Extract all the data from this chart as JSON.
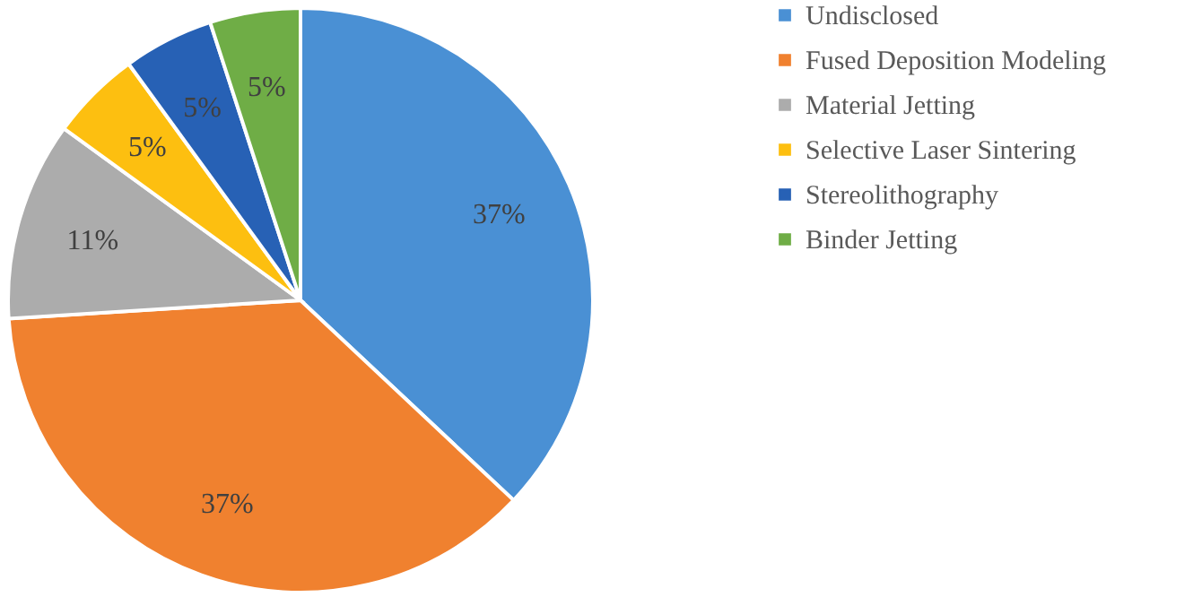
{
  "chart_data": {
    "type": "pie",
    "categories": [
      "Undisclosed",
      "Fused Deposition Modeling",
      "Material Jetting",
      "Selective Laser Sintering",
      "Stereolithography",
      "Binder Jetting"
    ],
    "values": [
      37,
      37,
      11,
      5,
      5,
      5
    ],
    "colors": [
      "#4a90d4",
      "#f0812f",
      "#acacac",
      "#fdbf10",
      "#2761b5",
      "#6fad46"
    ],
    "value_labels": [
      "37%",
      "37%",
      "11%",
      "5%",
      "5%",
      "5%"
    ],
    "legend": "right"
  }
}
